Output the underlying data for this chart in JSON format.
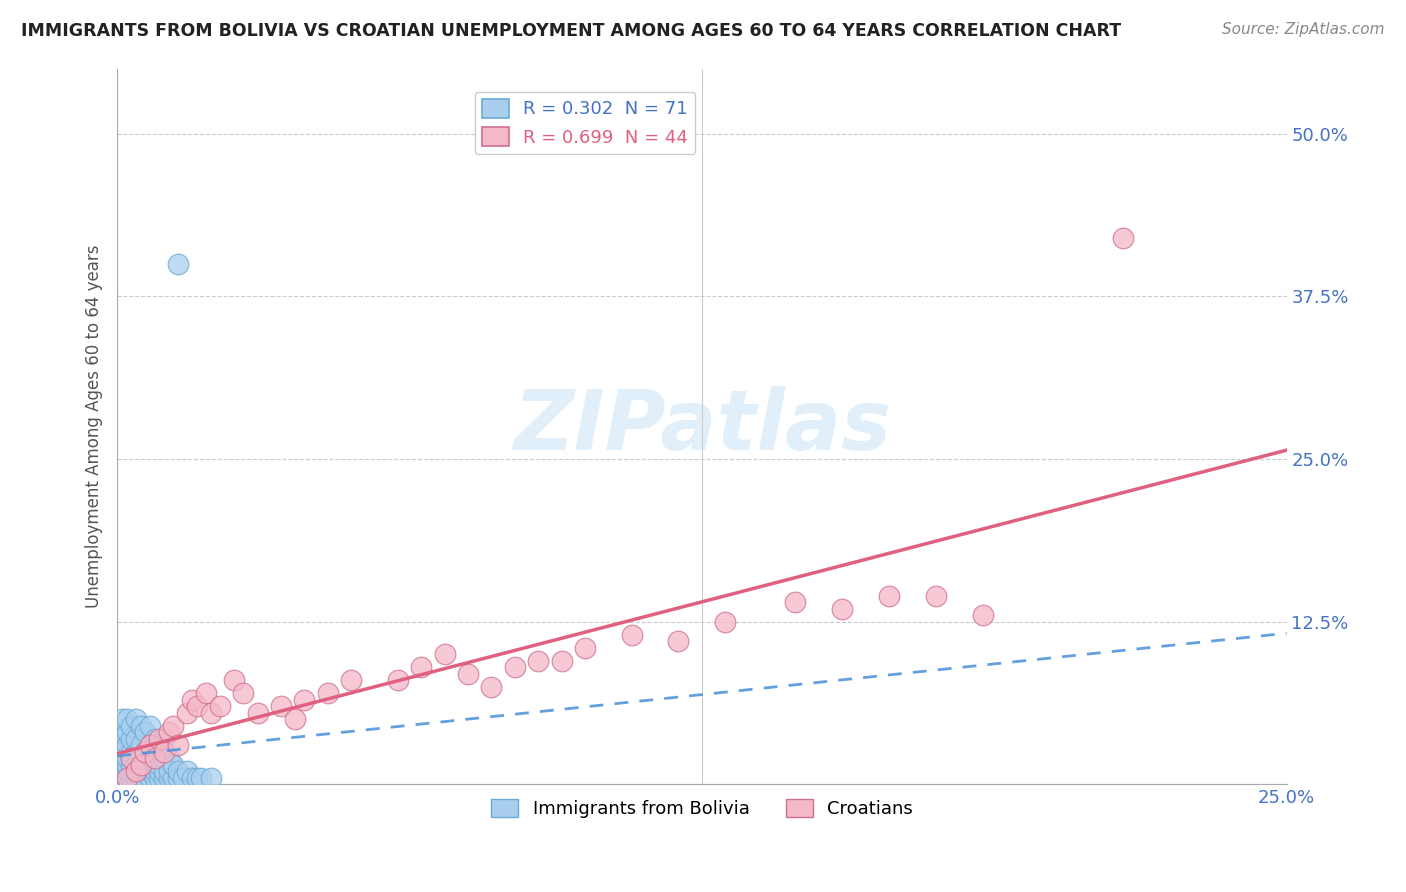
{
  "title": "IMMIGRANTS FROM BOLIVIA VS CROATIAN UNEMPLOYMENT AMONG AGES 60 TO 64 YEARS CORRELATION CHART",
  "source": "Source: ZipAtlas.com",
  "ylabel": "Unemployment Among Ages 60 to 64 years",
  "ytick_labels": [
    "",
    "12.5%",
    "25.0%",
    "37.5%",
    "50.0%"
  ],
  "ytick_values": [
    0,
    0.125,
    0.25,
    0.375,
    0.5
  ],
  "xlim": [
    0,
    0.25
  ],
  "ylim": [
    0,
    0.55
  ],
  "legend1_label": "R = 0.302  N = 71",
  "legend2_label": "R = 0.699  N = 44",
  "scatter1_color": "#aacfee",
  "scatter1_edge": "#6aaad4",
  "scatter2_color": "#f5b8c8",
  "scatter2_edge": "#d07090",
  "line1_color": "#4a90d9",
  "line2_color": "#e06080",
  "watermark_color": "#cce5f5",
  "bolivia_x": [
    0.001,
    0.001,
    0.001,
    0.001,
    0.001,
    0.001,
    0.001,
    0.001,
    0.001,
    0.002,
    0.002,
    0.002,
    0.002,
    0.002,
    0.002,
    0.002,
    0.003,
    0.003,
    0.003,
    0.003,
    0.003,
    0.003,
    0.003,
    0.004,
    0.004,
    0.004,
    0.004,
    0.004,
    0.004,
    0.005,
    0.005,
    0.005,
    0.005,
    0.005,
    0.005,
    0.006,
    0.006,
    0.006,
    0.006,
    0.006,
    0.007,
    0.007,
    0.007,
    0.007,
    0.007,
    0.008,
    0.008,
    0.008,
    0.008,
    0.009,
    0.009,
    0.009,
    0.009,
    0.01,
    0.01,
    0.01,
    0.01,
    0.011,
    0.011,
    0.011,
    0.012,
    0.012,
    0.013,
    0.013,
    0.014,
    0.015,
    0.016,
    0.017,
    0.018,
    0.02,
    0.013
  ],
  "bolivia_y": [
    0.005,
    0.01,
    0.015,
    0.02,
    0.025,
    0.03,
    0.035,
    0.04,
    0.05,
    0.005,
    0.01,
    0.015,
    0.02,
    0.03,
    0.04,
    0.05,
    0.005,
    0.01,
    0.015,
    0.02,
    0.025,
    0.035,
    0.045,
    0.005,
    0.01,
    0.015,
    0.025,
    0.035,
    0.05,
    0.005,
    0.01,
    0.015,
    0.02,
    0.03,
    0.045,
    0.005,
    0.01,
    0.015,
    0.025,
    0.04,
    0.005,
    0.01,
    0.02,
    0.03,
    0.045,
    0.005,
    0.01,
    0.02,
    0.035,
    0.005,
    0.01,
    0.015,
    0.03,
    0.005,
    0.01,
    0.02,
    0.035,
    0.005,
    0.01,
    0.02,
    0.005,
    0.015,
    0.005,
    0.01,
    0.005,
    0.01,
    0.005,
    0.005,
    0.005,
    0.005,
    0.4
  ],
  "croatian_x": [
    0.002,
    0.003,
    0.004,
    0.005,
    0.006,
    0.007,
    0.008,
    0.009,
    0.01,
    0.011,
    0.012,
    0.013,
    0.015,
    0.016,
    0.017,
    0.019,
    0.02,
    0.022,
    0.025,
    0.027,
    0.03,
    0.035,
    0.038,
    0.04,
    0.045,
    0.05,
    0.06,
    0.065,
    0.07,
    0.075,
    0.08,
    0.085,
    0.09,
    0.095,
    0.1,
    0.11,
    0.12,
    0.13,
    0.145,
    0.155,
    0.165,
    0.175,
    0.185,
    0.215
  ],
  "croatian_y": [
    0.005,
    0.02,
    0.01,
    0.015,
    0.025,
    0.03,
    0.02,
    0.035,
    0.025,
    0.04,
    0.045,
    0.03,
    0.055,
    0.065,
    0.06,
    0.07,
    0.055,
    0.06,
    0.08,
    0.07,
    0.055,
    0.06,
    0.05,
    0.065,
    0.07,
    0.08,
    0.08,
    0.09,
    0.1,
    0.085,
    0.075,
    0.09,
    0.095,
    0.095,
    0.105,
    0.115,
    0.11,
    0.125,
    0.14,
    0.135,
    0.145,
    0.145,
    0.13,
    0.42
  ]
}
